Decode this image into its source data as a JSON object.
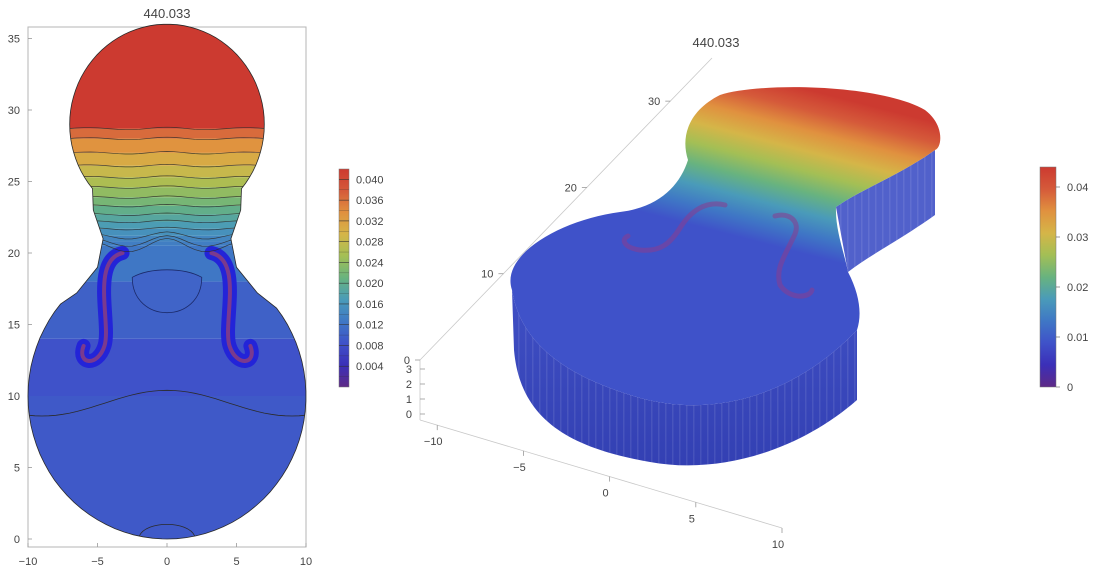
{
  "chart_data": [
    {
      "type": "heatmap",
      "subtype": "contour",
      "title": "440.033",
      "xlabel": "",
      "ylabel": "",
      "xlim": [
        -10,
        10
      ],
      "ylim": [
        0,
        36
      ],
      "x_ticks": [
        "−10",
        "−5",
        "0",
        "5",
        "10"
      ],
      "y_ticks": [
        "0",
        "5",
        "10",
        "15",
        "20",
        "25",
        "30",
        "35"
      ],
      "legend_placement": "right",
      "colorbar": {
        "min": 0,
        "max": 0.042,
        "labels": [
          "0.040",
          "0.036",
          "0.032",
          "0.028",
          "0.024",
          "0.020",
          "0.016",
          "0.012",
          "0.008",
          "0.004"
        ],
        "stops": [
          "#5e2a86",
          "#3b2fb8",
          "#3f52c9",
          "#3f77c5",
          "#4a9bb9",
          "#68b37f",
          "#a3bf55",
          "#d5b548",
          "#e0913f",
          "#d55a3a",
          "#cc3a30"
        ]
      },
      "contour_levels_y": [
        28.7,
        28.0,
        27.0,
        26.1,
        25.3,
        24.6,
        23.9,
        23.3,
        22.7,
        22.2,
        21.7,
        21.2,
        20.8,
        20.5
      ]
    },
    {
      "type": "heatmap",
      "subtype": "3d-density",
      "title": "440.033",
      "xlim": [
        -10,
        10
      ],
      "ylim": [
        0,
        35
      ],
      "zlim": [
        0,
        3
      ],
      "x_ticks": [
        "−10",
        "−5",
        "0",
        "5",
        "10"
      ],
      "y_ticks": [
        "0",
        "10",
        "20",
        "30"
      ],
      "z_ticks": [
        "0",
        "1",
        "2",
        "3"
      ],
      "legend_placement": "right",
      "colorbar": {
        "min": 0,
        "max": 0.044,
        "labels": [
          "0.04",
          "0.03",
          "0.02",
          "0.01",
          "0"
        ],
        "stops": [
          "#5e2a86",
          "#3b2fb8",
          "#3f52c9",
          "#3f77c5",
          "#4a9bb9",
          "#68b37f",
          "#a3bf55",
          "#d5b548",
          "#e0913f",
          "#d55a3a",
          "#cc3a30"
        ]
      }
    }
  ]
}
